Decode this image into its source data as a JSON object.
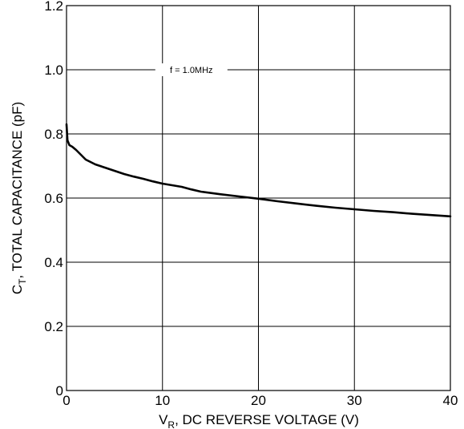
{
  "chart_data": {
    "type": "line",
    "xlabel": {
      "main": "V",
      "sub": "R",
      "rest": ", DC REVERSE VOLTAGE (V)"
    },
    "ylabel": {
      "main": "C",
      "sub": "T",
      "rest": ", TOTAL CAPACITANCE (pF)"
    },
    "xlim": [
      0,
      40
    ],
    "ylim": [
      0,
      1.2
    ],
    "x_ticks": [
      0,
      10,
      20,
      30,
      40
    ],
    "x_tick_labels": [
      "0",
      "10",
      "20",
      "30",
      "40"
    ],
    "y_ticks": [
      0,
      0.2,
      0.4,
      0.6,
      0.8,
      1.0,
      1.2
    ],
    "y_tick_labels": [
      "0",
      "0.2",
      "0.4",
      "0.6",
      "0.8",
      "1.0",
      "1.2"
    ],
    "grid": true,
    "annotation": "f = 1.0MHz",
    "annotation_at": [
      8,
      1.0
    ],
    "series": [
      {
        "x": [
          0,
          0.1,
          0.3,
          0.6,
          1,
          1.5,
          2,
          3,
          4,
          5,
          6,
          7,
          8,
          9,
          10,
          11,
          12,
          13,
          14,
          16,
          18,
          20,
          22,
          24,
          26,
          28,
          30,
          32,
          34,
          36,
          38,
          40
        ],
        "y": [
          0.83,
          0.78,
          0.765,
          0.76,
          0.75,
          0.735,
          0.72,
          0.705,
          0.695,
          0.685,
          0.675,
          0.667,
          0.66,
          0.652,
          0.645,
          0.64,
          0.635,
          0.627,
          0.62,
          0.612,
          0.605,
          0.598,
          0.59,
          0.583,
          0.576,
          0.57,
          0.565,
          0.56,
          0.556,
          0.551,
          0.547,
          0.543
        ],
        "color": "#000000"
      }
    ]
  }
}
